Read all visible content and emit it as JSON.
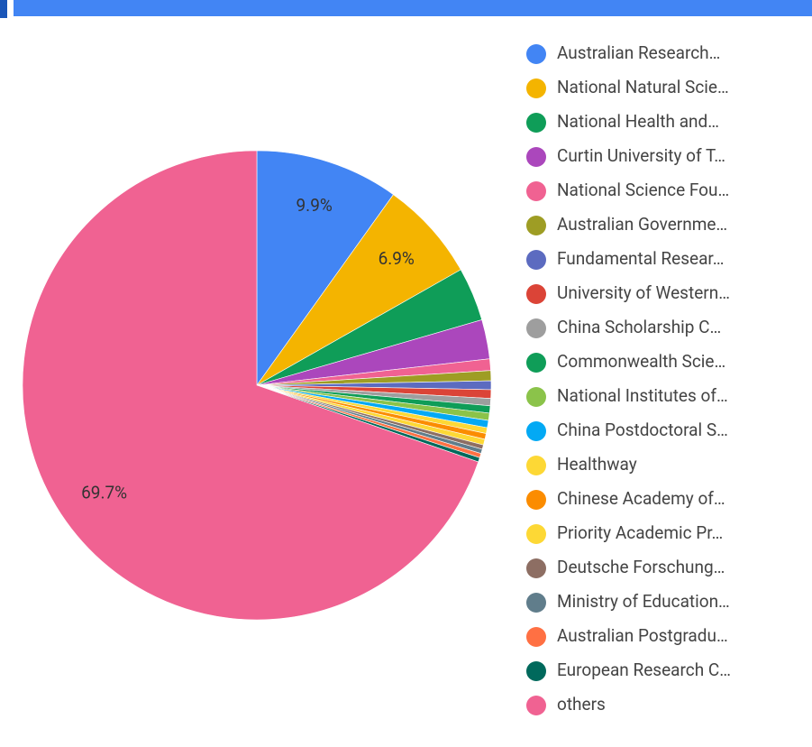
{
  "chart_data": {
    "type": "pie",
    "categories": [
      "Australian Research…",
      "National Natural Scie…",
      "National Health and…",
      "Curtin University of T…",
      "National Science Fou…",
      "Australian Governme…",
      "Fundamental Resear…",
      "University of Western…",
      "China Scholarship C…",
      "Commonwealth Scie…",
      "National Institutes of…",
      "China Postdoctoral S…",
      "Healthway",
      "Chinese Academy of…",
      "Priority Academic Pr…",
      "Deutsche Forschung…",
      "Ministry of Education…",
      "Australian Postgradu…",
      "European Research C…",
      "others"
    ],
    "values": [
      9.9,
      6.9,
      3.7,
      2.7,
      0.8,
      0.7,
      0.6,
      0.6,
      0.5,
      0.5,
      0.5,
      0.5,
      0.4,
      0.4,
      0.4,
      0.3,
      0.3,
      0.3,
      0.3,
      69.7
    ],
    "value_labels": [
      "9.9%",
      "6.9%",
      null,
      null,
      null,
      null,
      null,
      null,
      null,
      null,
      null,
      null,
      null,
      null,
      null,
      null,
      null,
      null,
      null,
      "69.7%"
    ],
    "colors": [
      "#4285f4",
      "#f4b400",
      "#0f9d58",
      "#ab47bc",
      "#f06292",
      "#9e9d24",
      "#5c6bc0",
      "#db4437",
      "#9e9e9e",
      "#0f9d58",
      "#8bc34a",
      "#03a9f4",
      "#fdd835",
      "#fb8c00",
      "#fdd835",
      "#8d6e63",
      "#607d8b",
      "#ff7043",
      "#00695c",
      "#f06292"
    ]
  }
}
